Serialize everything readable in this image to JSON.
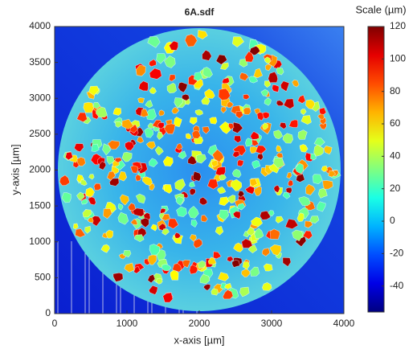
{
  "chart_data": {
    "type": "heatmap",
    "title": "6A.sdf",
    "x_label": "x-axis [µm]",
    "y_label": "y-axis [µm]",
    "xlim": [
      0,
      4000
    ],
    "ylim": [
      0,
      4000
    ],
    "xticks": [
      0,
      1000,
      2000,
      3000,
      4000
    ],
    "yticks": [
      0,
      500,
      1000,
      1500,
      2000,
      2500,
      3000,
      3500,
      4000
    ],
    "colorbar": {
      "label": "Scale (µm)",
      "lim": [
        -56,
        120
      ],
      "ticks": [
        -40,
        -20,
        0,
        20,
        40,
        60,
        80,
        100,
        120
      ],
      "colormap": "jet"
    }
  }
}
